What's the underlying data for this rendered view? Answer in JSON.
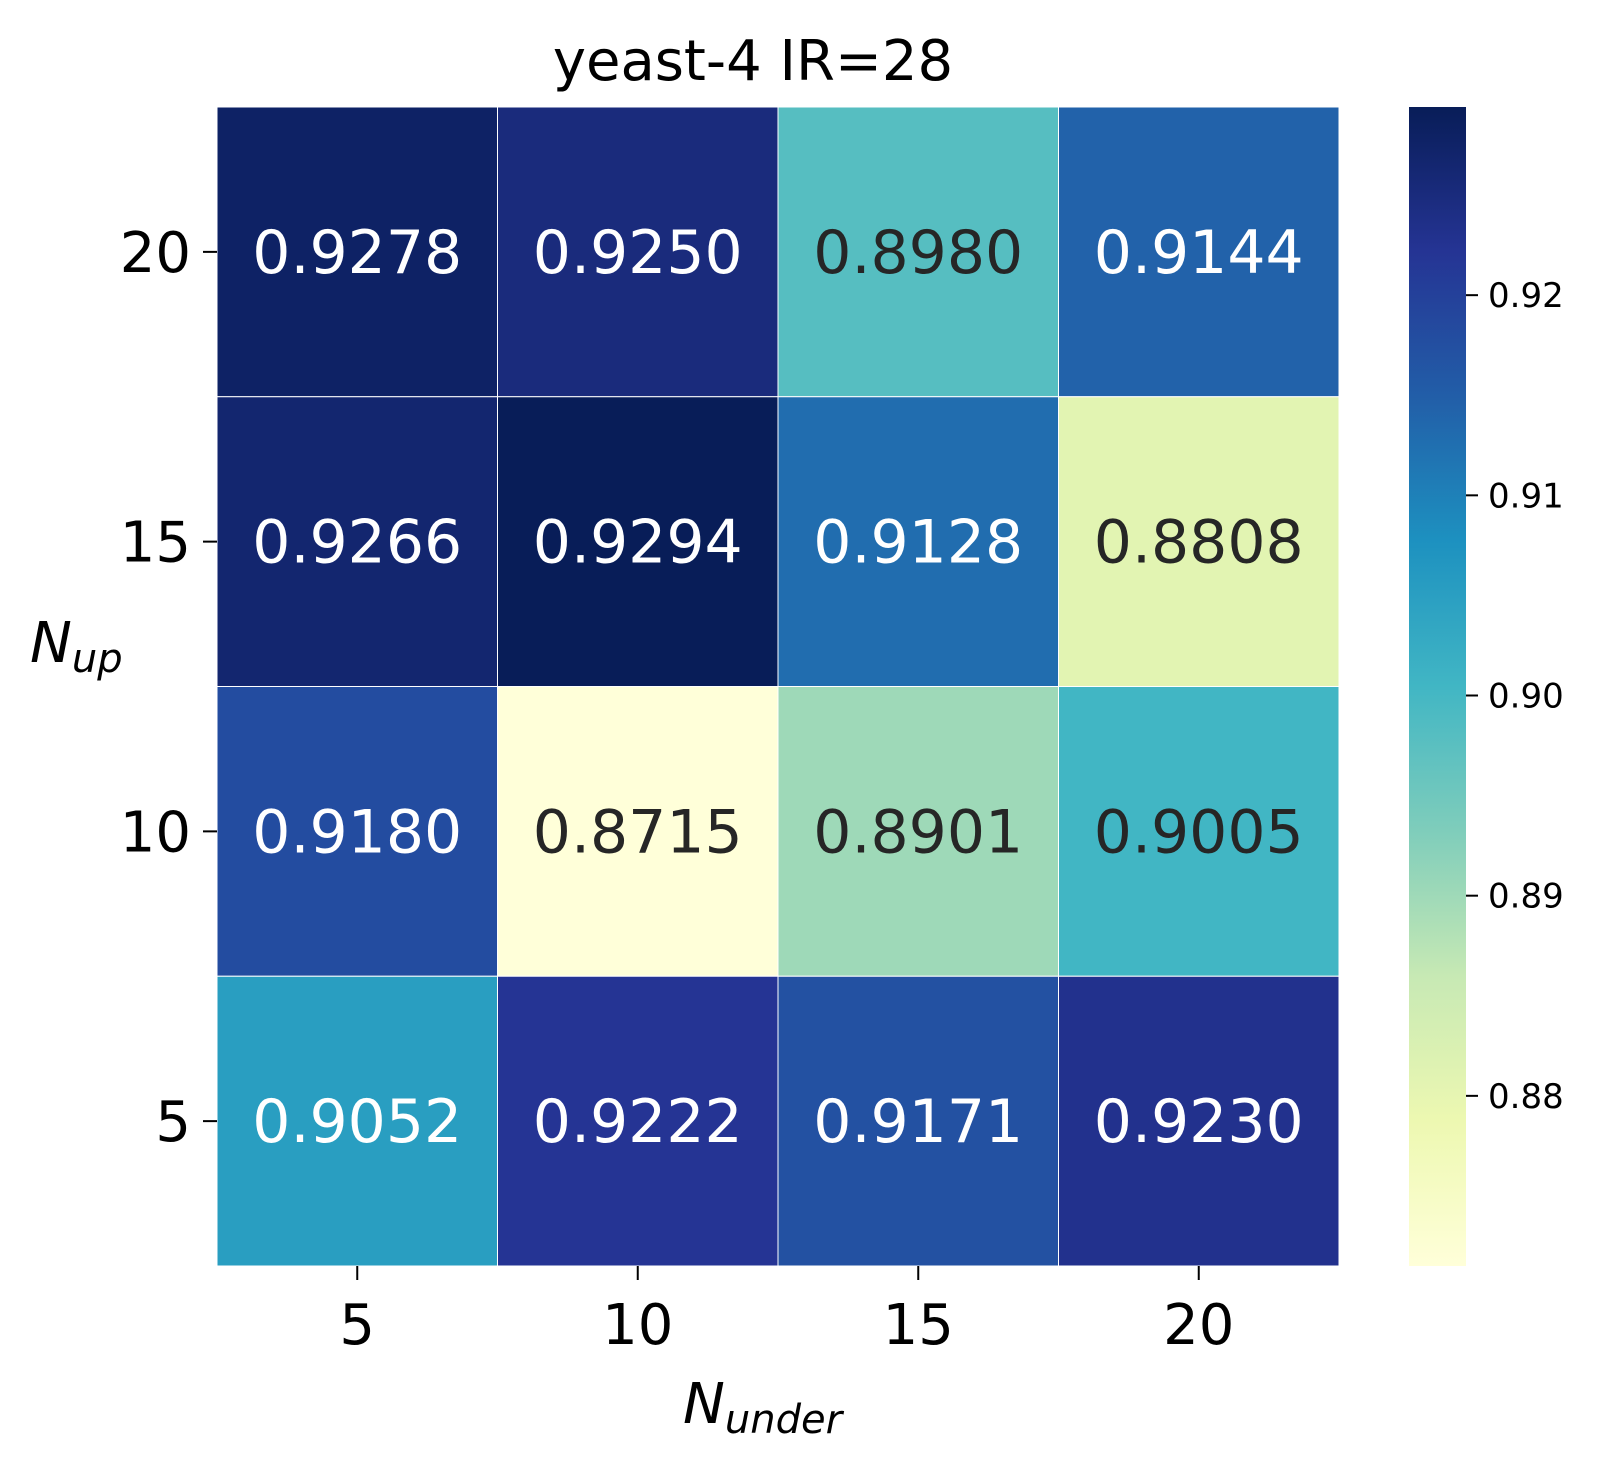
{
  "chart_data": {
    "type": "heatmap",
    "title": "yeast-4 IR=28",
    "xlabel_main": "N",
    "xlabel_sub": "under",
    "ylabel_main": "N",
    "ylabel_sub": "up",
    "x_categories": [
      "5",
      "10",
      "15",
      "20"
    ],
    "y_categories": [
      "20",
      "15",
      "10",
      "5"
    ],
    "values": [
      [
        0.9278,
        0.925,
        0.898,
        0.9144
      ],
      [
        0.9266,
        0.9294,
        0.9128,
        0.8808
      ],
      [
        0.918,
        0.8715,
        0.8901,
        0.9005
      ],
      [
        0.9052,
        0.9222,
        0.9171,
        0.923
      ]
    ],
    "cell_labels": [
      [
        "0.9278",
        "0.9250",
        "0.8980",
        "0.9144"
      ],
      [
        "0.9266",
        "0.9294",
        "0.9128",
        "0.8808"
      ],
      [
        "0.9180",
        "0.8715",
        "0.8901",
        "0.9005"
      ],
      [
        "0.9052",
        "0.9222",
        "0.9171",
        "0.9230"
      ]
    ],
    "colormap": "YlGnBu",
    "vmin": 0.8715,
    "vmax": 0.9294,
    "colorbar_ticks": [
      0.88,
      0.89,
      0.9,
      0.91,
      0.92
    ],
    "colorbar_tick_labels": [
      "0.88",
      "0.89",
      "0.90",
      "0.91",
      "0.92"
    ],
    "colormap_stops": [
      "#ffffd9",
      "#edf8b1",
      "#c7e9b4",
      "#7fcdbb",
      "#41b6c4",
      "#1d91c0",
      "#225ea8",
      "#253494",
      "#081d58"
    ],
    "text_color_light": "#ffffff",
    "text_color_dark": "#262626"
  }
}
